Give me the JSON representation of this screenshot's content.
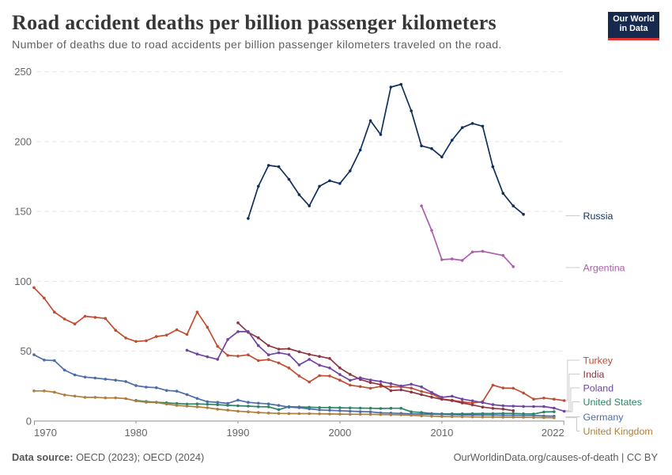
{
  "header": {
    "title": "Road accident deaths per billion passenger kilometers",
    "subtitle": "Number of deaths due to road accidents per billion passenger kilometers traveled on the road."
  },
  "logo": {
    "line1": "Our World",
    "line2": "in Data",
    "background_color": "#16294f",
    "accent_color": "#e0342d"
  },
  "footer": {
    "source_label": "Data source:",
    "source_value": "OECD (2023); OECD (2024)",
    "credit": "OurWorldinData.org/causes-of-death | CC BY"
  },
  "chart_data": {
    "type": "line",
    "title": "Road accident deaths per billion passenger kilometers",
    "xlabel": "",
    "ylabel": "",
    "xlim": [
      1970,
      2022
    ],
    "ylim": [
      0,
      250
    ],
    "xticks": [
      1970,
      1980,
      1990,
      2000,
      2010,
      2022
    ],
    "yticks": [
      0,
      50,
      100,
      150,
      200,
      250
    ],
    "grid": true,
    "legend_position": "right",
    "series": [
      {
        "name": "Russia",
        "color": "#10305c",
        "points": [
          [
            1991,
            145
          ],
          [
            1992,
            168
          ],
          [
            1993,
            183
          ],
          [
            1994,
            182
          ],
          [
            1995,
            173
          ],
          [
            1996,
            162
          ],
          [
            1997,
            154
          ],
          [
            1998,
            168
          ],
          [
            1999,
            172
          ],
          [
            2000,
            170
          ],
          [
            2001,
            179
          ],
          [
            2002,
            194
          ],
          [
            2003,
            215
          ],
          [
            2004,
            205
          ],
          [
            2005,
            239
          ],
          [
            2006,
            241
          ],
          [
            2007,
            222
          ],
          [
            2008,
            197
          ],
          [
            2009,
            195
          ],
          [
            2010,
            189
          ],
          [
            2011,
            201
          ],
          [
            2012,
            210
          ],
          [
            2013,
            213
          ],
          [
            2014,
            211
          ],
          [
            2015,
            182
          ],
          [
            2016,
            163
          ],
          [
            2017,
            154
          ],
          [
            2018,
            148
          ]
        ]
      },
      {
        "name": "Argentina",
        "color": "#ad5cae",
        "points": [
          [
            2008,
            154
          ],
          [
            2009,
            136.5
          ],
          [
            2010,
            115.5
          ],
          [
            2011,
            116
          ],
          [
            2012,
            115
          ],
          [
            2013,
            121
          ],
          [
            2014,
            121.5
          ],
          [
            2016,
            118.5
          ],
          [
            2017,
            110.5
          ]
        ]
      },
      {
        "name": "Turkey",
        "color": "#c14d30",
        "points": [
          [
            1970,
            95.5
          ],
          [
            1971,
            88
          ],
          [
            1972,
            78
          ],
          [
            1973,
            73
          ],
          [
            1974,
            69.5
          ],
          [
            1975,
            75
          ],
          [
            1976,
            74.2
          ],
          [
            1977,
            73.5
          ],
          [
            1978,
            65
          ],
          [
            1979,
            59.5
          ],
          [
            1980,
            57
          ],
          [
            1981,
            57.5
          ],
          [
            1982,
            60.5
          ],
          [
            1983,
            61.5
          ],
          [
            1984,
            65.3
          ],
          [
            1985,
            62
          ],
          [
            1986,
            78
          ],
          [
            1987,
            67.2
          ],
          [
            1988,
            53.5
          ],
          [
            1989,
            47
          ],
          [
            1990,
            46.5
          ],
          [
            1991,
            47.4
          ],
          [
            1992,
            43.3
          ],
          [
            1993,
            44
          ],
          [
            1994,
            41.6
          ],
          [
            1995,
            38
          ],
          [
            1996,
            32.3
          ],
          [
            1997,
            28
          ],
          [
            1998,
            32.5
          ],
          [
            1999,
            32.3
          ],
          [
            2000,
            29.3
          ],
          [
            2001,
            25.7
          ],
          [
            2002,
            24.7
          ],
          [
            2003,
            23.5
          ],
          [
            2004,
            24.8
          ],
          [
            2005,
            24.7
          ],
          [
            2006,
            24.5
          ],
          [
            2007,
            23.6
          ],
          [
            2008,
            21.2
          ],
          [
            2009,
            19.6
          ],
          [
            2010,
            15.8
          ],
          [
            2011,
            14.9
          ],
          [
            2012,
            13.7
          ],
          [
            2013,
            13
          ],
          [
            2014,
            14
          ],
          [
            2015,
            25.7
          ],
          [
            2016,
            23.7
          ],
          [
            2017,
            23.5
          ],
          [
            2018,
            20.1
          ],
          [
            2019,
            15.7
          ],
          [
            2020,
            16.5
          ],
          [
            2021,
            15.7
          ],
          [
            2022,
            14.7
          ]
        ]
      },
      {
        "name": "India",
        "color": "#8d3540",
        "points": [
          [
            1990,
            70.3
          ],
          [
            1991,
            63.5
          ],
          [
            1992,
            59.6
          ],
          [
            1993,
            54
          ],
          [
            1994,
            51.5
          ],
          [
            1995,
            51.8
          ],
          [
            1996,
            49.6
          ],
          [
            1997,
            47.7
          ],
          [
            1998,
            46.3
          ],
          [
            1999,
            44.8
          ],
          [
            2000,
            38
          ],
          [
            2001,
            33.4
          ],
          [
            2002,
            29.8
          ],
          [
            2003,
            27.6
          ],
          [
            2004,
            26.1
          ],
          [
            2005,
            21.8
          ],
          [
            2006,
            22.3
          ],
          [
            2007,
            20.8
          ],
          [
            2008,
            18.9
          ],
          [
            2009,
            17.1
          ],
          [
            2010,
            15.6
          ],
          [
            2011,
            14.6
          ],
          [
            2012,
            13
          ],
          [
            2013,
            11.6
          ],
          [
            2014,
            10
          ],
          [
            2015,
            9.1
          ],
          [
            2016,
            8.6
          ],
          [
            2017,
            7.5
          ]
        ]
      },
      {
        "name": "Poland",
        "color": "#6f43a3",
        "points": [
          [
            1985,
            50.7
          ],
          [
            1986,
            48
          ],
          [
            1987,
            46
          ],
          [
            1988,
            44.2
          ],
          [
            1989,
            58.4
          ],
          [
            1990,
            64
          ],
          [
            1991,
            64.1
          ],
          [
            1992,
            54
          ],
          [
            1993,
            47.4
          ],
          [
            1994,
            48.9
          ],
          [
            1995,
            47.6
          ],
          [
            1996,
            40.2
          ],
          [
            1997,
            44.2
          ],
          [
            1998,
            40
          ],
          [
            1999,
            38
          ],
          [
            2000,
            33.3
          ],
          [
            2001,
            29.2
          ],
          [
            2002,
            31
          ],
          [
            2003,
            29.4
          ],
          [
            2004,
            28.3
          ],
          [
            2005,
            26.8
          ],
          [
            2006,
            25.1
          ],
          [
            2007,
            26.4
          ],
          [
            2008,
            24.5
          ],
          [
            2009,
            20.5
          ],
          [
            2010,
            17
          ],
          [
            2011,
            17.8
          ],
          [
            2012,
            15.7
          ],
          [
            2013,
            14.5
          ],
          [
            2014,
            13.2
          ],
          [
            2015,
            11.8
          ],
          [
            2016,
            11
          ],
          [
            2017,
            10.7
          ],
          [
            2018,
            10.5
          ],
          [
            2019,
            10.4
          ],
          [
            2020,
            10.4
          ],
          [
            2021,
            9.3
          ],
          [
            2022,
            7
          ]
        ]
      },
      {
        "name": "United States",
        "color": "#2c8465",
        "points": [
          [
            1980,
            14.8
          ],
          [
            1981,
            14
          ],
          [
            1982,
            13.5
          ],
          [
            1983,
            13.1
          ],
          [
            1984,
            12.6
          ],
          [
            1985,
            12.2
          ],
          [
            1986,
            12.3
          ],
          [
            1987,
            12
          ],
          [
            1988,
            11.7
          ],
          [
            1989,
            11.3
          ],
          [
            1990,
            11
          ],
          [
            1991,
            10.7
          ],
          [
            1992,
            10.3
          ],
          [
            1993,
            10.2
          ],
          [
            1994,
            8.2
          ],
          [
            1995,
            10.3
          ],
          [
            1996,
            10.1
          ],
          [
            1997,
            9.9
          ],
          [
            1998,
            9.7
          ],
          [
            1999,
            9.7
          ],
          [
            2000,
            9.5
          ],
          [
            2001,
            9.4
          ],
          [
            2002,
            9.3
          ],
          [
            2003,
            9.2
          ],
          [
            2004,
            9
          ],
          [
            2005,
            9.2
          ],
          [
            2006,
            9.2
          ],
          [
            2007,
            6.6
          ],
          [
            2008,
            6.2
          ],
          [
            2009,
            5.4
          ],
          [
            2010,
            5.2
          ],
          [
            2011,
            5.2
          ],
          [
            2012,
            5.2
          ],
          [
            2013,
            5.3
          ],
          [
            2014,
            5.4
          ],
          [
            2015,
            5.4
          ],
          [
            2016,
            5.5
          ],
          [
            2017,
            5.5
          ],
          [
            2018,
            5.2
          ],
          [
            2019,
            5.1
          ],
          [
            2020,
            6.5
          ],
          [
            2021,
            6.7
          ]
        ]
      },
      {
        "name": "Germany",
        "color": "#4c6da9",
        "points": [
          [
            1970,
            47.5
          ],
          [
            1971,
            43.7
          ],
          [
            1972,
            43.3
          ],
          [
            1973,
            36.5
          ],
          [
            1974,
            33
          ],
          [
            1975,
            31.5
          ],
          [
            1976,
            30.8
          ],
          [
            1977,
            30
          ],
          [
            1978,
            29.3
          ],
          [
            1979,
            28.3
          ],
          [
            1980,
            25.4
          ],
          [
            1981,
            24.3
          ],
          [
            1982,
            23.9
          ],
          [
            1983,
            21.9
          ],
          [
            1984,
            21.4
          ],
          [
            1985,
            19
          ],
          [
            1986,
            16.2
          ],
          [
            1987,
            13.9
          ],
          [
            1988,
            13.4
          ],
          [
            1989,
            12.7
          ],
          [
            1990,
            15
          ],
          [
            1991,
            13.4
          ],
          [
            1992,
            12.8
          ],
          [
            1993,
            12.3
          ],
          [
            1994,
            11.2
          ],
          [
            1995,
            10
          ],
          [
            1996,
            9.6
          ],
          [
            1997,
            8.8
          ],
          [
            1998,
            8
          ],
          [
            1999,
            7.7
          ],
          [
            2000,
            7.4
          ],
          [
            2001,
            7.1
          ],
          [
            2002,
            6.8
          ],
          [
            2003,
            6.6
          ],
          [
            2004,
            5.9
          ],
          [
            2005,
            5.7
          ],
          [
            2006,
            5.5
          ],
          [
            2007,
            5.2
          ],
          [
            2008,
            5
          ],
          [
            2009,
            4.9
          ],
          [
            2010,
            4.8
          ],
          [
            2011,
            4.6
          ],
          [
            2012,
            4.5
          ],
          [
            2013,
            4.4
          ],
          [
            2014,
            4.3
          ],
          [
            2015,
            4.3
          ],
          [
            2016,
            4.2
          ],
          [
            2017,
            4.2
          ],
          [
            2018,
            4.1
          ],
          [
            2019,
            4
          ],
          [
            2020,
            3.7
          ],
          [
            2021,
            3.5
          ]
        ]
      },
      {
        "name": "United Kingdom",
        "color": "#ac7f3f",
        "points": [
          [
            1970,
            21.6
          ],
          [
            1971,
            21.6
          ],
          [
            1972,
            20.7
          ],
          [
            1973,
            18.7
          ],
          [
            1974,
            17.9
          ],
          [
            1975,
            17
          ],
          [
            1976,
            17
          ],
          [
            1977,
            16.6
          ],
          [
            1978,
            16.6
          ],
          [
            1979,
            16.1
          ],
          [
            1980,
            14.4
          ],
          [
            1981,
            13.5
          ],
          [
            1982,
            13.3
          ],
          [
            1983,
            12.2
          ],
          [
            1984,
            11.2
          ],
          [
            1985,
            10.7
          ],
          [
            1986,
            10.2
          ],
          [
            1987,
            9.6
          ],
          [
            1988,
            8.5
          ],
          [
            1989,
            7.8
          ],
          [
            1990,
            7.1
          ],
          [
            1991,
            6.6
          ],
          [
            1992,
            6.1
          ],
          [
            1993,
            5.8
          ],
          [
            1994,
            5.5
          ],
          [
            1995,
            5.4
          ],
          [
            1996,
            5.3
          ],
          [
            1997,
            5.3
          ],
          [
            1998,
            5.2
          ],
          [
            1999,
            5.1
          ],
          [
            2000,
            5
          ],
          [
            2001,
            4.9
          ],
          [
            2002,
            4.9
          ],
          [
            2003,
            4.8
          ],
          [
            2004,
            4.7
          ],
          [
            2005,
            4.6
          ],
          [
            2006,
            4.5
          ],
          [
            2007,
            4.2
          ],
          [
            2008,
            3.8
          ],
          [
            2009,
            3.5
          ],
          [
            2010,
            3.3
          ],
          [
            2011,
            3.2
          ],
          [
            2012,
            3.1
          ],
          [
            2013,
            3
          ],
          [
            2014,
            2.9
          ],
          [
            2015,
            2.9
          ],
          [
            2016,
            2.8
          ],
          [
            2017,
            2.8
          ],
          [
            2018,
            2.7
          ],
          [
            2019,
            2.6
          ],
          [
            2020,
            2.5
          ],
          [
            2021,
            2.4
          ]
        ]
      }
    ]
  }
}
